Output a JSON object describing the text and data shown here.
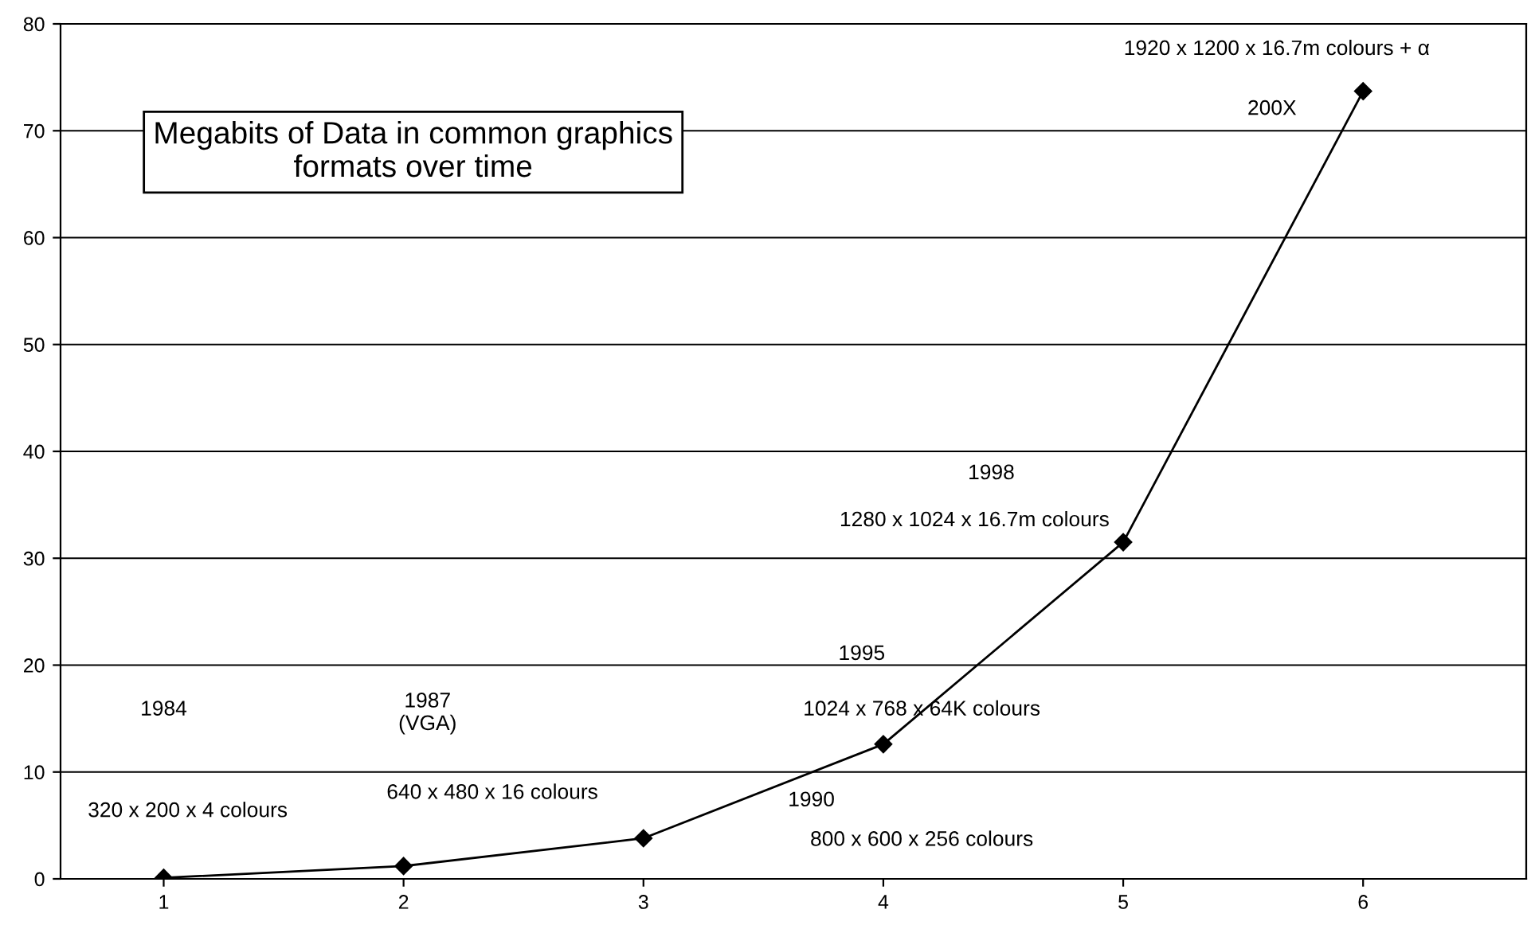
{
  "chart_data": {
    "type": "line",
    "title": "Megabits of Data in common graphics\nformats over time",
    "categories": [
      "1",
      "2",
      "3",
      "4",
      "5",
      "6"
    ],
    "series": [
      {
        "color": "#000000",
        "values": [
          0.1,
          1.2,
          3.8,
          12.6,
          31.5,
          73.7
        ]
      }
    ],
    "ylim": [
      0,
      80
    ],
    "yticks": [
      0,
      10,
      20,
      30,
      40,
      50,
      60,
      70,
      80
    ],
    "grid": "y",
    "marker": "diamond",
    "line_style": "solid",
    "legend": false,
    "annotations": [
      "1984",
      "320 x 200 x 4 colours",
      "1987\n(VGA)",
      "640 x 480 x 16 colours",
      "1990",
      "800 x 600 x 256 colours",
      "1995",
      "1024 x 768 x 64K colours",
      "1998",
      "1280 x 1024 x 16.7m colours",
      "1920 x 1200 x 16.7m colours + α",
      "200X"
    ]
  }
}
